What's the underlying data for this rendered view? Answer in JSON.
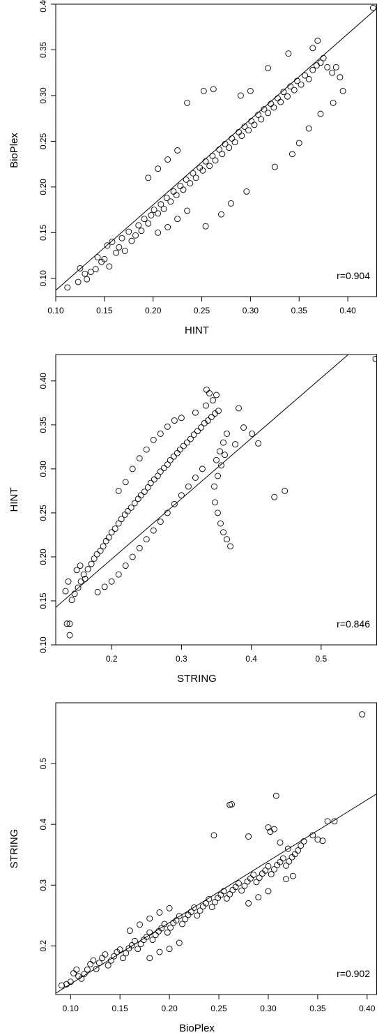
{
  "chart_data": [
    {
      "type": "scatter",
      "xlabel": "HINT",
      "ylabel": "BioPlex",
      "annotation": "r=0.904",
      "xlim": [
        0.1,
        0.43
      ],
      "ylim": [
        0.08,
        0.4
      ],
      "xticks": [
        "0.10",
        "0.15",
        "0.20",
        "0.25",
        "0.30",
        "0.35",
        "0.40"
      ],
      "yticks": [
        "0.10",
        "0.15",
        "0.20",
        "0.25",
        "0.30",
        "0.35",
        "0.40"
      ],
      "fit_line": [
        [
          0.1,
          0.0869
        ],
        [
          0.43,
          0.3956
        ]
      ],
      "points": [
        [
          0.112,
          0.09
        ],
        [
          0.123,
          0.096
        ],
        [
          0.125,
          0.111
        ],
        [
          0.13,
          0.105
        ],
        [
          0.132,
          0.099
        ],
        [
          0.136,
          0.107
        ],
        [
          0.141,
          0.11
        ],
        [
          0.143,
          0.123
        ],
        [
          0.147,
          0.118
        ],
        [
          0.15,
          0.121
        ],
        [
          0.155,
          0.113
        ],
        [
          0.153,
          0.136
        ],
        [
          0.158,
          0.14
        ],
        [
          0.162,
          0.128
        ],
        [
          0.165,
          0.134
        ],
        [
          0.168,
          0.144
        ],
        [
          0.171,
          0.13
        ],
        [
          0.175,
          0.151
        ],
        [
          0.178,
          0.141
        ],
        [
          0.182,
          0.147
        ],
        [
          0.185,
          0.158
        ],
        [
          0.188,
          0.152
        ],
        [
          0.191,
          0.165
        ],
        [
          0.195,
          0.16
        ],
        [
          0.198,
          0.169
        ],
        [
          0.201,
          0.175
        ],
        [
          0.205,
          0.171
        ],
        [
          0.208,
          0.181
        ],
        [
          0.211,
          0.176
        ],
        [
          0.214,
          0.188
        ],
        [
          0.218,
          0.184
        ],
        [
          0.221,
          0.195
        ],
        [
          0.224,
          0.191
        ],
        [
          0.228,
          0.201
        ],
        [
          0.231,
          0.197
        ],
        [
          0.234,
          0.208
        ],
        [
          0.238,
          0.204
        ],
        [
          0.241,
          0.215
        ],
        [
          0.244,
          0.21
        ],
        [
          0.248,
          0.221
        ],
        [
          0.251,
          0.218
        ],
        [
          0.254,
          0.228
        ],
        [
          0.258,
          0.223
        ],
        [
          0.261,
          0.234
        ],
        [
          0.264,
          0.229
        ],
        [
          0.268,
          0.241
        ],
        [
          0.271,
          0.236
        ],
        [
          0.274,
          0.247
        ],
        [
          0.278,
          0.243
        ],
        [
          0.281,
          0.253
        ],
        [
          0.284,
          0.249
        ],
        [
          0.288,
          0.26
        ],
        [
          0.291,
          0.256
        ],
        [
          0.294,
          0.266
        ],
        [
          0.298,
          0.262
        ],
        [
          0.301,
          0.272
        ],
        [
          0.304,
          0.268
        ],
        [
          0.308,
          0.279
        ],
        [
          0.311,
          0.274
        ],
        [
          0.314,
          0.285
        ],
        [
          0.318,
          0.281
        ],
        [
          0.321,
          0.291
        ],
        [
          0.324,
          0.287
        ],
        [
          0.328,
          0.297
        ],
        [
          0.331,
          0.293
        ],
        [
          0.334,
          0.304
        ],
        [
          0.338,
          0.299
        ],
        [
          0.341,
          0.31
        ],
        [
          0.345,
          0.306
        ],
        [
          0.348,
          0.316
        ],
        [
          0.352,
          0.312
        ],
        [
          0.356,
          0.322
        ],
        [
          0.36,
          0.318
        ],
        [
          0.364,
          0.328
        ],
        [
          0.368,
          0.333
        ],
        [
          0.372,
          0.336
        ],
        [
          0.375,
          0.341
        ],
        [
          0.379,
          0.331
        ],
        [
          0.384,
          0.325
        ],
        [
          0.388,
          0.331
        ],
        [
          0.392,
          0.32
        ],
        [
          0.369,
          0.36
        ],
        [
          0.364,
          0.352
        ],
        [
          0.339,
          0.346
        ],
        [
          0.318,
          0.33
        ],
        [
          0.262,
          0.307
        ],
        [
          0.252,
          0.305
        ],
        [
          0.235,
          0.292
        ],
        [
          0.254,
          0.157
        ],
        [
          0.27,
          0.17
        ],
        [
          0.28,
          0.182
        ],
        [
          0.296,
          0.195
        ],
        [
          0.325,
          0.222
        ],
        [
          0.343,
          0.236
        ],
        [
          0.35,
          0.248
        ],
        [
          0.36,
          0.264
        ],
        [
          0.372,
          0.28
        ],
        [
          0.385,
          0.292
        ],
        [
          0.395,
          0.305
        ],
        [
          0.426,
          0.396
        ],
        [
          0.205,
          0.15
        ],
        [
          0.215,
          0.156
        ],
        [
          0.225,
          0.165
        ],
        [
          0.235,
          0.174
        ],
        [
          0.195,
          0.21
        ],
        [
          0.205,
          0.22
        ],
        [
          0.215,
          0.23
        ],
        [
          0.225,
          0.24
        ],
        [
          0.29,
          0.3
        ],
        [
          0.3,
          0.305
        ]
      ]
    },
    {
      "type": "scatter",
      "xlabel": "STRING",
      "ylabel": "HINT",
      "annotation": "r=0.846",
      "xlim": [
        0.12,
        0.58
      ],
      "ylim": [
        0.1,
        0.43
      ],
      "xticks": [
        "0.2",
        "0.3",
        "0.4",
        "0.5"
      ],
      "yticks": [
        "0.10",
        "0.15",
        "0.20",
        "0.25",
        "0.30",
        "0.35",
        "0.40"
      ],
      "fit_line": [
        [
          0.12,
          0.1426
        ],
        [
          0.58,
          0.4582
        ]
      ],
      "points": [
        [
          0.136,
          0.124
        ],
        [
          0.14,
          0.124
        ],
        [
          0.14,
          0.111
        ],
        [
          0.134,
          0.161
        ],
        [
          0.138,
          0.172
        ],
        [
          0.143,
          0.151
        ],
        [
          0.147,
          0.158
        ],
        [
          0.152,
          0.165
        ],
        [
          0.156,
          0.172
        ],
        [
          0.16,
          0.18
        ],
        [
          0.15,
          0.185
        ],
        [
          0.155,
          0.19
        ],
        [
          0.162,
          0.175
        ],
        [
          0.166,
          0.186
        ],
        [
          0.171,
          0.192
        ],
        [
          0.175,
          0.198
        ],
        [
          0.179,
          0.203
        ],
        [
          0.184,
          0.207
        ],
        [
          0.188,
          0.212
        ],
        [
          0.192,
          0.218
        ],
        [
          0.196,
          0.222
        ],
        [
          0.2,
          0.228
        ],
        [
          0.205,
          0.232
        ],
        [
          0.21,
          0.238
        ],
        [
          0.214,
          0.243
        ],
        [
          0.219,
          0.248
        ],
        [
          0.223,
          0.252
        ],
        [
          0.228,
          0.256
        ],
        [
          0.233,
          0.261
        ],
        [
          0.238,
          0.266
        ],
        [
          0.242,
          0.27
        ],
        [
          0.247,
          0.274
        ],
        [
          0.252,
          0.279
        ],
        [
          0.256,
          0.284
        ],
        [
          0.261,
          0.288
        ],
        [
          0.266,
          0.292
        ],
        [
          0.27,
          0.297
        ],
        [
          0.275,
          0.301
        ],
        [
          0.28,
          0.305
        ],
        [
          0.284,
          0.31
        ],
        [
          0.289,
          0.314
        ],
        [
          0.294,
          0.318
        ],
        [
          0.298,
          0.322
        ],
        [
          0.303,
          0.326
        ],
        [
          0.308,
          0.33
        ],
        [
          0.313,
          0.334
        ],
        [
          0.318,
          0.339
        ],
        [
          0.323,
          0.343
        ],
        [
          0.328,
          0.347
        ],
        [
          0.333,
          0.352
        ],
        [
          0.338,
          0.355
        ],
        [
          0.343,
          0.359
        ],
        [
          0.348,
          0.363
        ],
        [
          0.353,
          0.366
        ],
        [
          0.33,
          0.3
        ],
        [
          0.32,
          0.29
        ],
        [
          0.31,
          0.28
        ],
        [
          0.3,
          0.27
        ],
        [
          0.29,
          0.26
        ],
        [
          0.28,
          0.25
        ],
        [
          0.27,
          0.24
        ],
        [
          0.26,
          0.23
        ],
        [
          0.25,
          0.22
        ],
        [
          0.24,
          0.21
        ],
        [
          0.23,
          0.2
        ],
        [
          0.22,
          0.19
        ],
        [
          0.21,
          0.18
        ],
        [
          0.2,
          0.172
        ],
        [
          0.19,
          0.166
        ],
        [
          0.18,
          0.16
        ],
        [
          0.21,
          0.275
        ],
        [
          0.22,
          0.285
        ],
        [
          0.23,
          0.3
        ],
        [
          0.24,
          0.312
        ],
        [
          0.25,
          0.322
        ],
        [
          0.26,
          0.333
        ],
        [
          0.27,
          0.34
        ],
        [
          0.28,
          0.348
        ],
        [
          0.29,
          0.355
        ],
        [
          0.3,
          0.358
        ],
        [
          0.32,
          0.364
        ],
        [
          0.335,
          0.372
        ],
        [
          0.345,
          0.378
        ],
        [
          0.35,
          0.384
        ],
        [
          0.336,
          0.39
        ],
        [
          0.34,
          0.386
        ],
        [
          0.35,
          0.31
        ],
        [
          0.355,
          0.32
        ],
        [
          0.36,
          0.33
        ],
        [
          0.365,
          0.34
        ],
        [
          0.347,
          0.28
        ],
        [
          0.352,
          0.292
        ],
        [
          0.357,
          0.304
        ],
        [
          0.362,
          0.316
        ],
        [
          0.348,
          0.262
        ],
        [
          0.352,
          0.25
        ],
        [
          0.356,
          0.238
        ],
        [
          0.36,
          0.228
        ],
        [
          0.365,
          0.22
        ],
        [
          0.37,
          0.212
        ],
        [
          0.377,
          0.328
        ],
        [
          0.41,
          0.329
        ],
        [
          0.433,
          0.268
        ],
        [
          0.448,
          0.275
        ],
        [
          0.382,
          0.369
        ],
        [
          0.401,
          0.34
        ],
        [
          0.389,
          0.347
        ],
        [
          0.578,
          0.425
        ]
      ]
    },
    {
      "type": "scatter",
      "xlabel": "BioPlex",
      "ylabel": "STRING",
      "annotation": "r=0.902",
      "xlim": [
        0.085,
        0.41
      ],
      "ylim": [
        0.12,
        0.6
      ],
      "xticks": [
        "0.10",
        "0.15",
        "0.20",
        "0.25",
        "0.30",
        "0.35",
        "0.40"
      ],
      "yticks": [
        "0.2",
        "0.3",
        "0.4",
        "0.5"
      ],
      "fit_line": [
        [
          0.085,
          0.1222
        ],
        [
          0.41,
          0.4505
        ]
      ],
      "points": [
        [
          0.091,
          0.135
        ],
        [
          0.096,
          0.137
        ],
        [
          0.1,
          0.141
        ],
        [
          0.103,
          0.155
        ],
        [
          0.106,
          0.161
        ],
        [
          0.108,
          0.15
        ],
        [
          0.111,
          0.146
        ],
        [
          0.114,
          0.154
        ],
        [
          0.117,
          0.161
        ],
        [
          0.12,
          0.17
        ],
        [
          0.123,
          0.176
        ],
        [
          0.126,
          0.162
        ],
        [
          0.129,
          0.172
        ],
        [
          0.132,
          0.18
        ],
        [
          0.135,
          0.186
        ],
        [
          0.138,
          0.168
        ],
        [
          0.141,
          0.176
        ],
        [
          0.144,
          0.183
        ],
        [
          0.147,
          0.19
        ],
        [
          0.15,
          0.194
        ],
        [
          0.153,
          0.18
        ],
        [
          0.156,
          0.188
        ],
        [
          0.159,
          0.196
        ],
        [
          0.162,
          0.201
        ],
        [
          0.165,
          0.208
        ],
        [
          0.168,
          0.195
        ],
        [
          0.171,
          0.203
        ],
        [
          0.174,
          0.21
        ],
        [
          0.177,
          0.215
        ],
        [
          0.18,
          0.222
        ],
        [
          0.183,
          0.21
        ],
        [
          0.186,
          0.218
        ],
        [
          0.189,
          0.224
        ],
        [
          0.192,
          0.229
        ],
        [
          0.195,
          0.236
        ],
        [
          0.198,
          0.222
        ],
        [
          0.201,
          0.23
        ],
        [
          0.204,
          0.238
        ],
        [
          0.207,
          0.242
        ],
        [
          0.21,
          0.249
        ],
        [
          0.213,
          0.236
        ],
        [
          0.216,
          0.244
        ],
        [
          0.219,
          0.251
        ],
        [
          0.222,
          0.256
        ],
        [
          0.225,
          0.263
        ],
        [
          0.228,
          0.25
        ],
        [
          0.231,
          0.258
        ],
        [
          0.234,
          0.265
        ],
        [
          0.237,
          0.27
        ],
        [
          0.24,
          0.277
        ],
        [
          0.243,
          0.264
        ],
        [
          0.246,
          0.272
        ],
        [
          0.249,
          0.279
        ],
        [
          0.252,
          0.284
        ],
        [
          0.255,
          0.29
        ],
        [
          0.258,
          0.278
        ],
        [
          0.261,
          0.285
        ],
        [
          0.264,
          0.292
        ],
        [
          0.267,
          0.297
        ],
        [
          0.27,
          0.303
        ],
        [
          0.273,
          0.291
        ],
        [
          0.276,
          0.299
        ],
        [
          0.279,
          0.306
        ],
        [
          0.282,
          0.311
        ],
        [
          0.285,
          0.317
        ],
        [
          0.288,
          0.305
        ],
        [
          0.291,
          0.312
        ],
        [
          0.294,
          0.319
        ],
        [
          0.297,
          0.324
        ],
        [
          0.3,
          0.331
        ],
        [
          0.303,
          0.318
        ],
        [
          0.306,
          0.326
        ],
        [
          0.309,
          0.333
        ],
        [
          0.312,
          0.338
        ],
        [
          0.315,
          0.344
        ],
        [
          0.318,
          0.332
        ],
        [
          0.321,
          0.339
        ],
        [
          0.324,
          0.346
        ],
        [
          0.327,
          0.351
        ],
        [
          0.33,
          0.357
        ],
        [
          0.333,
          0.365
        ],
        [
          0.336,
          0.372
        ],
        [
          0.32,
          0.36
        ],
        [
          0.312,
          0.37
        ],
        [
          0.3,
          0.395
        ],
        [
          0.302,
          0.388
        ],
        [
          0.306,
          0.392
        ],
        [
          0.345,
          0.382
        ],
        [
          0.35,
          0.375
        ],
        [
          0.36,
          0.405
        ],
        [
          0.367,
          0.405
        ],
        [
          0.355,
          0.373
        ],
        [
          0.318,
          0.31
        ],
        [
          0.325,
          0.315
        ],
        [
          0.28,
          0.38
        ],
        [
          0.245,
          0.382
        ],
        [
          0.261,
          0.432
        ],
        [
          0.263,
          0.433
        ],
        [
          0.308,
          0.447
        ],
        [
          0.395,
          0.581
        ],
        [
          0.18,
          0.18
        ],
        [
          0.19,
          0.19
        ],
        [
          0.2,
          0.195
        ],
        [
          0.21,
          0.205
        ],
        [
          0.16,
          0.225
        ],
        [
          0.17,
          0.235
        ],
        [
          0.18,
          0.245
        ],
        [
          0.19,
          0.255
        ],
        [
          0.2,
          0.262
        ],
        [
          0.28,
          0.27
        ],
        [
          0.29,
          0.28
        ],
        [
          0.3,
          0.29
        ]
      ]
    }
  ]
}
